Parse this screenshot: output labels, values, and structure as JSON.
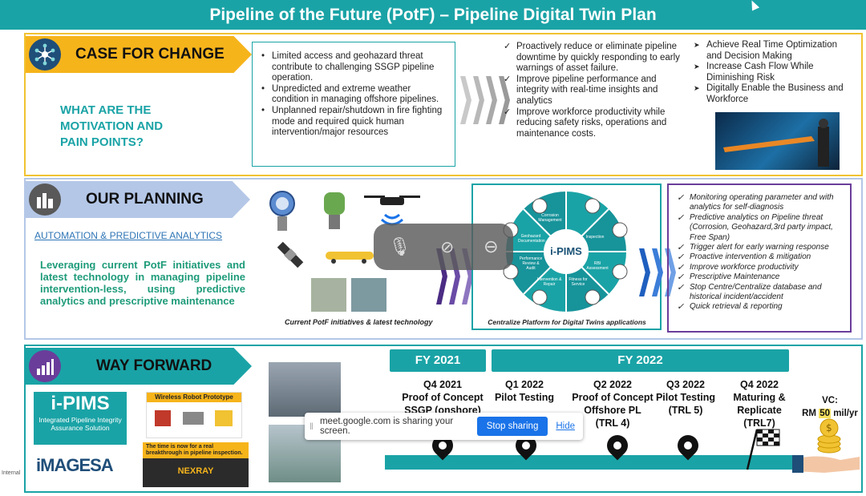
{
  "title": "Pipeline of the Future (PotF) – Pipeline Digital Twin Plan",
  "section1": {
    "header": "CASE FOR CHANGE",
    "side_text": [
      "WHAT ARE THE",
      "MOTIVATION AND",
      "PAIN POINTS?"
    ],
    "pain_points": [
      "Limited access and geohazard threat contribute to challenging SSGP pipeline operation.",
      "Unpredicted and extreme weather condition in managing offshore pipelines.",
      "Unplanned repair/shutdown in fire fighting mode and required quick human intervention/major resources"
    ],
    "benefits": [
      "Proactively reduce or eliminate pipeline downtime by quickly responding to early warnings of asset failure.",
      "Improve pipeline performance and integrity with real-time insights and analytics",
      "Improve workforce productivity while reducing safety risks, operations and maintenance costs."
    ],
    "outcomes": [
      "Achieve Real Time Optimization and Decision Making",
      "Increase Cash Flow While Diminishing Risk",
      "Digitally Enable the Business and Workforce"
    ]
  },
  "section2": {
    "header": "OUR PLANNING",
    "subheader": "AUTOMATION & PREDICTIVE ANALYTICS",
    "description": "Leveraging current PotF initiatives and latest technology in managing pipeline intervention-less, using predictive analytics and prescriptive maintenance",
    "tech_caption": "Current PotF initiatives & latest technology",
    "platform_caption": "Centralize Platform for Digital Twins applications",
    "ipims_center": "i-PIMS",
    "ipims_segments": [
      "Corrosion Management",
      "Geotechnical",
      "Inspection",
      "RBI Assessment",
      "Fitness for Service",
      "Intervention & Repair",
      "Geohazard Documentation",
      "Performance Review & Audit"
    ],
    "features": [
      "Monitoring operating parameter and with analytics for self-diagnosis",
      "Predictive analytics on Pipeline threat (Corrosion, Geohazard,3rd party impact, Free Span)",
      "Trigger alert for early warning response",
      "Proactive intervention & mitigation",
      "Improve workforce productivity",
      "Prescriptive Maintenance",
      "Stop Centre/Centralize database and historical incident/accident",
      "Quick retrieval & reporting"
    ]
  },
  "section3": {
    "header": "WAY FORWARD",
    "ipims_logo": "i-PIMS",
    "ipims_logo_sub": "Integrated Pipeline Integrity Assurance Solution",
    "imagesa": "iMAGESA",
    "robot_title": "Wireless Robot Prototype",
    "breakthrough_text": "The time is now for a real breakthrough in pipeline inspection.",
    "nexray": "NEXRAY",
    "fy2021": "FY 2021",
    "fy2022": "FY 2022",
    "milestones": [
      {
        "q": "Q4 2021",
        "l1": "Proof of Concept",
        "l2": "SSGP (onshore)"
      },
      {
        "q": "Q1 2022",
        "l1": "Pilot Testing",
        "l2": ""
      },
      {
        "q": "Q2 2022",
        "l1": "Proof of Concept",
        "l2": "Offshore PL",
        "l3": "(TRL 4)"
      },
      {
        "q": "Q3 2022",
        "l1": "Pilot Testing",
        "l2": "(TRL 5)"
      },
      {
        "q": "Q4 2022",
        "l1": "Maturing &",
        "l2": "Replicate",
        "l3": "(TRL7)"
      }
    ],
    "vc_label": "VC:",
    "vc_prefix": "RM ",
    "vc_value": "50",
    "vc_suffix": " mil/yr"
  },
  "share_bar": {
    "text": "meet.google.com is sharing your screen.",
    "stop": "Stop sharing",
    "hide": "Hide"
  },
  "footer_label": "Internal"
}
